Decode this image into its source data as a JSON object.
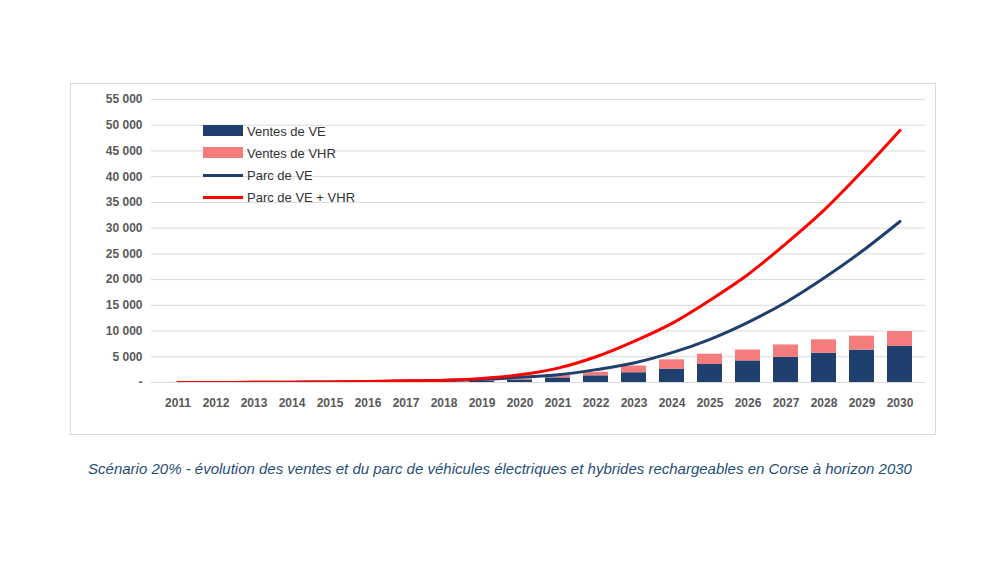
{
  "chart_data": {
    "type": "bar",
    "title": "Scénario 20% - évolution des ventes et du parc de véhicules électriques et hybrides rechargeables en Corse à horizon 2030",
    "x": [
      "2011",
      "2012",
      "2013",
      "2014",
      "2015",
      "2016",
      "2017",
      "2018",
      "2019",
      "2020",
      "2021",
      "2022",
      "2023",
      "2024",
      "2025",
      "2026",
      "2027",
      "2028",
      "2029",
      "2030"
    ],
    "stacked": true,
    "grid": true,
    "legend": "top-left",
    "ylim": [
      0,
      55000
    ],
    "yticks": [
      {
        "value": 0,
        "label": "-"
      },
      {
        "value": 5000,
        "label": "5 000"
      },
      {
        "value": 10000,
        "label": "10 000"
      },
      {
        "value": 15000,
        "label": "15 000"
      },
      {
        "value": 20000,
        "label": "20 000"
      },
      {
        "value": 25000,
        "label": "25 000"
      },
      {
        "value": 30000,
        "label": "30 000"
      },
      {
        "value": 35000,
        "label": "35 000"
      },
      {
        "value": 40000,
        "label": "40 000"
      },
      {
        "value": 45000,
        "label": "45 000"
      },
      {
        "value": 50000,
        "label": "50 000"
      },
      {
        "value": 55000,
        "label": "55 000"
      }
    ],
    "series": [
      {
        "name": "Ventes de VE",
        "type": "bar",
        "color": "#1f3f6e",
        "values": [
          10,
          20,
          30,
          40,
          60,
          100,
          120,
          150,
          200,
          500,
          900,
          1300,
          1900,
          2600,
          3500,
          4200,
          4900,
          5700,
          6300,
          7000
        ]
      },
      {
        "name": "Ventes de VHR",
        "type": "bar",
        "color": "#f47c7c",
        "values": [
          0,
          0,
          0,
          0,
          0,
          10,
          20,
          30,
          80,
          200,
          500,
          700,
          1300,
          1800,
          2000,
          2100,
          2400,
          2600,
          2700,
          2900
        ]
      },
      {
        "name": "Parc de VE",
        "type": "line",
        "color": "#1f3f6e",
        "values": [
          0,
          10,
          30,
          60,
          100,
          180,
          280,
          400,
          600,
          1000,
          1500,
          2500,
          3800,
          5800,
          8400,
          11700,
          15600,
          20300,
          25500,
          31300
        ]
      },
      {
        "name": "Parc de VE + VHR",
        "type": "line",
        "color": "#ff0000",
        "values": [
          0,
          10,
          30,
          60,
          110,
          200,
          320,
          460,
          800,
          1500,
          2800,
          5000,
          8000,
          11500,
          16000,
          21000,
          27000,
          33500,
          41000,
          49000
        ]
      }
    ]
  }
}
